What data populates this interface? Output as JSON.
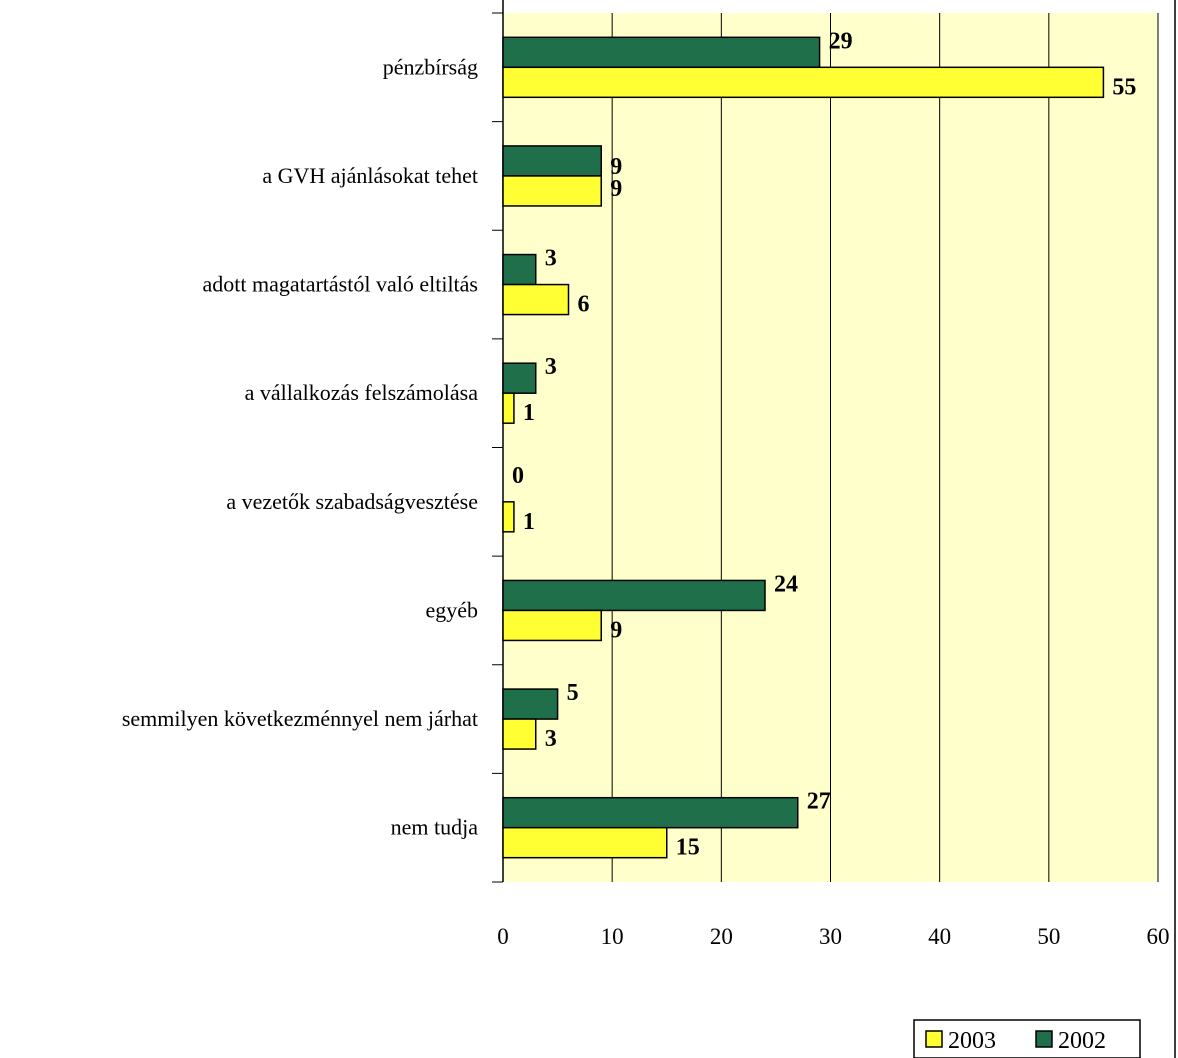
{
  "chart_data": {
    "type": "bar",
    "orientation": "horizontal",
    "categories": [
      "pénzbírság",
      "a GVH ajánlásokat tehet",
      "adott magatartástól való eltiltás",
      "a vállalkozás felszámolása",
      "a vezetők szabadságvesztése",
      "egyéb",
      "semmilyen következménnyel nem járhat",
      "nem tudja"
    ],
    "series": [
      {
        "name": "2002",
        "values": [
          29,
          9,
          3,
          3,
          0,
          24,
          5,
          27
        ],
        "color": "#1f6f4a"
      },
      {
        "name": "2003",
        "values": [
          55,
          9,
          6,
          1,
          1,
          9,
          3,
          15
        ],
        "color": "#ffff33"
      }
    ],
    "xlim": [
      0,
      60
    ],
    "xticks": [
      "0",
      "10",
      "20",
      "30",
      "40",
      "50",
      "60"
    ],
    "grid": true,
    "legend_position": "bottom-right",
    "legend_order": [
      "2003",
      "2002"
    ],
    "plot_background": "#ffffcc",
    "title": "",
    "xlabel": "",
    "ylabel": ""
  }
}
